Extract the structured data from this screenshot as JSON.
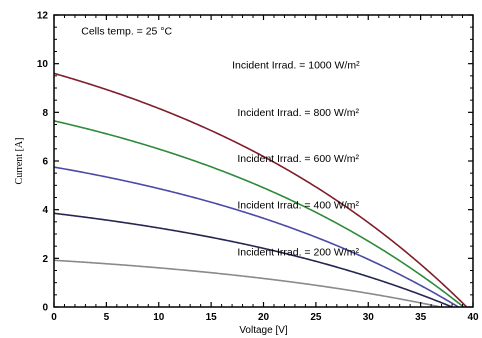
{
  "chart_data": {
    "type": "line",
    "xlabel": "Voltage [V]",
    "ylabel": "Current [A]",
    "xlim": [
      0,
      40
    ],
    "ylim": [
      0,
      12
    ],
    "xticks": [
      0,
      5,
      10,
      15,
      20,
      25,
      30,
      35,
      40
    ],
    "yticks": [
      0,
      2,
      4,
      6,
      8,
      10,
      12
    ],
    "grid": false,
    "annotation": "Cells temp. = 25 °C",
    "series": [
      {
        "name": "Incident Irrad. = 1000 W/m²",
        "color": "#7f1d2a",
        "isc": 9.6,
        "voc": 39.4,
        "label_x": 17.0
      },
      {
        "name": "Incident Irrad. = 800 W/m²",
        "color": "#2f8a3a",
        "isc": 7.65,
        "voc": 39.1,
        "label_x": 17.5
      },
      {
        "name": "Incident Irrad. = 600 W/m²",
        "color": "#4a4aa8",
        "isc": 5.75,
        "voc": 38.6,
        "label_x": 17.5
      },
      {
        "name": "Incident Irrad. = 400 W/m²",
        "color": "#262652",
        "isc": 3.85,
        "voc": 38.0,
        "label_x": 17.5
      },
      {
        "name": "Incident Irrad. = 200 W/m²",
        "color": "#8a8a8a",
        "isc": 1.92,
        "voc": 36.9,
        "label_x": 17.5
      }
    ]
  }
}
